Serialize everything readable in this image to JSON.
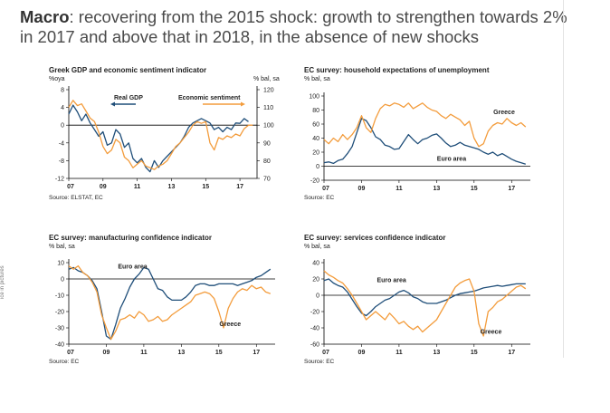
{
  "headline": {
    "bold": "Macro",
    "rest": ": recovering from the 2015 shock: growth to strengthen towards 2% in 2017 and above that in 2018, in the absence of new shocks"
  },
  "side_text": "ice in pictures",
  "colors": {
    "blue": "#1f4e79",
    "orange": "#f39c3c",
    "axis": "#000000"
  },
  "chart_data": [
    {
      "id": "gdp",
      "type": "line",
      "title": "Greek GDP and economic sentiment indicator",
      "left_unit": "%oya",
      "right_unit": "% bal, sa",
      "source": "Source: ELSTAT, EC",
      "x_ticks": [
        "07",
        "09",
        "11",
        "13",
        "15",
        "17"
      ],
      "ylim": [
        -12,
        8
      ],
      "yticks": [
        8,
        4,
        0,
        -4,
        -8,
        -12
      ],
      "y2lim": [
        70,
        120
      ],
      "y2ticks": [
        120,
        110,
        100,
        90,
        80,
        70
      ],
      "series": [
        {
          "name": "Real GDP",
          "color": "#1f4e79",
          "axis": "left",
          "x": [
            2007.0,
            2007.25,
            2007.5,
            2007.75,
            2008.0,
            2008.25,
            2008.5,
            2008.75,
            2009.0,
            2009.25,
            2009.5,
            2009.75,
            2010.0,
            2010.25,
            2010.5,
            2010.75,
            2011.0,
            2011.25,
            2011.5,
            2011.75,
            2012.0,
            2012.25,
            2012.5,
            2012.75,
            2013.0,
            2013.25,
            2013.5,
            2013.75,
            2014.0,
            2014.25,
            2014.5,
            2014.75,
            2015.0,
            2015.25,
            2015.5,
            2015.75,
            2016.0,
            2016.25,
            2016.5,
            2016.75,
            2017.0,
            2017.25,
            2017.5
          ],
          "values": [
            2.5,
            4.5,
            3.0,
            1.0,
            2.5,
            0.5,
            -1.0,
            -2.5,
            -1.5,
            -4.5,
            -4.0,
            -1.0,
            -2.0,
            -5.0,
            -4.0,
            -7.5,
            -8.5,
            -7.5,
            -9.5,
            -10.5,
            -8.0,
            -9.5,
            -8.0,
            -7.0,
            -6.0,
            -5.0,
            -4.0,
            -2.5,
            -0.5,
            0.5,
            1.0,
            1.5,
            1.0,
            0.5,
            -1.0,
            -0.5,
            -1.5,
            -0.5,
            -1.0,
            0.5,
            0.4,
            1.5,
            0.8
          ]
        },
        {
          "name": "Economic sentiment",
          "color": "#f39c3c",
          "axis": "right",
          "x": [
            2007.0,
            2007.25,
            2007.5,
            2007.75,
            2008.0,
            2008.25,
            2008.5,
            2008.75,
            2009.0,
            2009.25,
            2009.5,
            2009.75,
            2010.0,
            2010.25,
            2010.5,
            2010.75,
            2011.0,
            2011.25,
            2011.5,
            2011.75,
            2012.0,
            2012.25,
            2012.5,
            2012.75,
            2013.0,
            2013.25,
            2013.5,
            2013.75,
            2014.0,
            2014.25,
            2014.5,
            2014.75,
            2015.0,
            2015.25,
            2015.5,
            2015.75,
            2016.0,
            2016.25,
            2016.5,
            2016.75,
            2017.0,
            2017.25,
            2017.5,
            2017.75
          ],
          "values": [
            110,
            114,
            111,
            112,
            108,
            104,
            102,
            96,
            88,
            84,
            86,
            92,
            90,
            82,
            80,
            76,
            78,
            80,
            77,
            76,
            75,
            77,
            78,
            80,
            84,
            88,
            90,
            93,
            96,
            100,
            102,
            101,
            102,
            90,
            86,
            93,
            92,
            94,
            93,
            95,
            94,
            98,
            100,
            100
          ]
        }
      ]
    },
    {
      "id": "unemp",
      "type": "line",
      "title": "EC survey: household expectations of unemployment",
      "left_unit": "% bal, sa",
      "source": "Source: EC",
      "x_ticks": [
        "07",
        "09",
        "11",
        "13",
        "15",
        "17"
      ],
      "ylim": [
        -20,
        100
      ],
      "yticks": [
        100,
        80,
        60,
        40,
        20,
        0,
        -20
      ],
      "labels": [
        {
          "text": "Greece",
          "x": 2016.6,
          "y": 74
        },
        {
          "text": "Euro area",
          "x": 2013.8,
          "y": 8
        }
      ],
      "series": [
        {
          "name": "Euro area",
          "color": "#1f4e79",
          "x": [
            2007.0,
            2007.25,
            2007.5,
            2007.75,
            2008.0,
            2008.25,
            2008.5,
            2008.75,
            2009.0,
            2009.25,
            2009.5,
            2009.75,
            2010.0,
            2010.25,
            2010.5,
            2010.75,
            2011.0,
            2011.25,
            2011.5,
            2011.75,
            2012.0,
            2012.25,
            2012.5,
            2012.75,
            2013.0,
            2013.25,
            2013.5,
            2013.75,
            2014.0,
            2014.25,
            2014.5,
            2014.75,
            2015.0,
            2015.25,
            2015.5,
            2015.75,
            2016.0,
            2016.25,
            2016.5,
            2016.75,
            2017.0,
            2017.25,
            2017.5,
            2017.75
          ],
          "values": [
            5,
            6,
            4,
            8,
            10,
            18,
            28,
            48,
            68,
            65,
            55,
            42,
            38,
            30,
            28,
            24,
            25,
            35,
            45,
            38,
            32,
            38,
            40,
            44,
            46,
            40,
            33,
            28,
            30,
            34,
            30,
            28,
            26,
            24,
            20,
            17,
            20,
            15,
            18,
            14,
            10,
            7,
            5,
            3
          ]
        },
        {
          "name": "Greece",
          "color": "#f39c3c",
          "x": [
            2007.0,
            2007.25,
            2007.5,
            2007.75,
            2008.0,
            2008.25,
            2008.5,
            2008.75,
            2009.0,
            2009.25,
            2009.5,
            2009.75,
            2010.0,
            2010.25,
            2010.5,
            2010.75,
            2011.0,
            2011.25,
            2011.5,
            2011.75,
            2012.0,
            2012.25,
            2012.5,
            2012.75,
            2013.0,
            2013.25,
            2013.5,
            2013.75,
            2014.0,
            2014.25,
            2014.5,
            2014.75,
            2015.0,
            2015.25,
            2015.5,
            2015.75,
            2016.0,
            2016.25,
            2016.5,
            2016.75,
            2017.0,
            2017.25,
            2017.5,
            2017.75
          ],
          "values": [
            38,
            32,
            40,
            35,
            45,
            38,
            45,
            55,
            72,
            55,
            48,
            68,
            82,
            88,
            86,
            90,
            88,
            84,
            90,
            82,
            86,
            90,
            84,
            80,
            78,
            72,
            68,
            74,
            70,
            66,
            58,
            64,
            40,
            28,
            32,
            50,
            58,
            62,
            60,
            68,
            62,
            58,
            62,
            56
          ]
        }
      ]
    },
    {
      "id": "manuf",
      "type": "line",
      "title": "EC survey: manufacturing confidence indicator",
      "left_unit": "% bal, sa",
      "source": "Source: EC",
      "x_ticks": [
        "07",
        "09",
        "11",
        "13",
        "15",
        "17"
      ],
      "ylim": [
        -40,
        10
      ],
      "yticks": [
        10,
        0,
        -10,
        -20,
        -30,
        -40
      ],
      "labels": [
        {
          "text": "Euro area",
          "x": 2010.4,
          "y": 6.5
        },
        {
          "text": "Greece",
          "x": 2015.6,
          "y": -29
        }
      ],
      "series": [
        {
          "name": "Euro area",
          "color": "#1f4e79",
          "x": [
            2007.0,
            2007.25,
            2007.5,
            2007.75,
            2008.0,
            2008.25,
            2008.5,
            2008.75,
            2009.0,
            2009.25,
            2009.5,
            2009.75,
            2010.0,
            2010.25,
            2010.5,
            2010.75,
            2011.0,
            2011.25,
            2011.5,
            2011.75,
            2012.0,
            2012.25,
            2012.5,
            2012.75,
            2013.0,
            2013.25,
            2013.5,
            2013.75,
            2014.0,
            2014.25,
            2014.5,
            2014.75,
            2015.0,
            2015.25,
            2015.5,
            2015.75,
            2016.0,
            2016.25,
            2016.5,
            2016.75,
            2017.0,
            2017.25,
            2017.5,
            2017.75
          ],
          "values": [
            6,
            7,
            5,
            4,
            2,
            -1,
            -6,
            -20,
            -35,
            -37,
            -28,
            -18,
            -12,
            -5,
            0,
            3,
            7,
            6,
            0,
            -6,
            -7,
            -11,
            -13,
            -13,
            -13,
            -11,
            -8,
            -4,
            -3,
            -3,
            -4,
            -4,
            -3,
            -3,
            -3,
            -3,
            -4,
            -3,
            -2,
            -1,
            1,
            2,
            4,
            6
          ]
        },
        {
          "name": "Greece",
          "color": "#f39c3c",
          "x": [
            2007.0,
            2007.25,
            2007.5,
            2007.75,
            2008.0,
            2008.25,
            2008.5,
            2008.75,
            2009.0,
            2009.25,
            2009.5,
            2009.75,
            2010.0,
            2010.25,
            2010.5,
            2010.75,
            2011.0,
            2011.25,
            2011.5,
            2011.75,
            2012.0,
            2012.25,
            2012.5,
            2012.75,
            2013.0,
            2013.25,
            2013.5,
            2013.75,
            2014.0,
            2014.25,
            2014.5,
            2014.75,
            2015.0,
            2015.25,
            2015.5,
            2015.75,
            2016.0,
            2016.25,
            2016.5,
            2016.75,
            2017.0,
            2017.25,
            2017.5,
            2017.75
          ],
          "values": [
            8,
            6,
            8,
            4,
            2,
            -2,
            -8,
            -22,
            -30,
            -37,
            -32,
            -25,
            -24,
            -22,
            -24,
            -20,
            -22,
            -26,
            -25,
            -23,
            -26,
            -25,
            -22,
            -20,
            -18,
            -16,
            -14,
            -10,
            -9,
            -8,
            -9,
            -12,
            -20,
            -30,
            -18,
            -12,
            -8,
            -6,
            -7,
            -4,
            -6,
            -5,
            -8,
            -9
          ]
        }
      ]
    },
    {
      "id": "services",
      "type": "line",
      "title": "EC survey: services confidence indicator",
      "left_unit": "% bal, sa",
      "source": "Source: EC",
      "x_ticks": [
        "07",
        "09",
        "11",
        "13",
        "15",
        "17"
      ],
      "ylim": [
        -60,
        40
      ],
      "yticks": [
        40,
        20,
        0,
        -20,
        -40,
        -60
      ],
      "labels": [
        {
          "text": "Euro area",
          "x": 2010.6,
          "y": 16
        },
        {
          "text": "Greece",
          "x": 2015.9,
          "y": -47
        }
      ],
      "series": [
        {
          "name": "Euro area",
          "color": "#1f4e79",
          "x": [
            2007.0,
            2007.25,
            2007.5,
            2007.75,
            2008.0,
            2008.25,
            2008.5,
            2008.75,
            2009.0,
            2009.25,
            2009.5,
            2009.75,
            2010.0,
            2010.25,
            2010.5,
            2010.75,
            2011.0,
            2011.25,
            2011.5,
            2011.75,
            2012.0,
            2012.25,
            2012.5,
            2012.75,
            2013.0,
            2013.25,
            2013.5,
            2013.75,
            2014.0,
            2014.25,
            2014.5,
            2014.75,
            2015.0,
            2015.25,
            2015.5,
            2015.75,
            2016.0,
            2016.25,
            2016.5,
            2016.75,
            2017.0,
            2017.25,
            2017.5,
            2017.75
          ],
          "values": [
            18,
            20,
            15,
            12,
            10,
            4,
            -5,
            -14,
            -22,
            -25,
            -20,
            -14,
            -10,
            -6,
            -4,
            0,
            4,
            6,
            3,
            -2,
            -4,
            -8,
            -10,
            -10,
            -10,
            -8,
            -6,
            -3,
            0,
            2,
            3,
            4,
            5,
            7,
            9,
            10,
            11,
            12,
            11,
            12,
            13,
            14,
            14,
            14
          ]
        },
        {
          "name": "Greece",
          "color": "#f39c3c",
          "x": [
            2007.0,
            2007.25,
            2007.5,
            2007.75,
            2008.0,
            2008.25,
            2008.5,
            2008.75,
            2009.0,
            2009.25,
            2009.5,
            2009.75,
            2010.0,
            2010.25,
            2010.5,
            2010.75,
            2011.0,
            2011.25,
            2011.5,
            2011.75,
            2012.0,
            2012.25,
            2012.5,
            2012.75,
            2013.0,
            2013.25,
            2013.5,
            2013.75,
            2014.0,
            2014.25,
            2014.5,
            2014.75,
            2015.0,
            2015.25,
            2015.5,
            2015.75,
            2016.0,
            2016.25,
            2016.5,
            2016.75,
            2017.0,
            2017.25,
            2017.5,
            2017.75
          ],
          "values": [
            30,
            25,
            22,
            18,
            15,
            8,
            0,
            -10,
            -20,
            -30,
            -25,
            -20,
            -25,
            -30,
            -22,
            -28,
            -35,
            -32,
            -38,
            -42,
            -38,
            -45,
            -40,
            -35,
            -30,
            -20,
            -10,
            0,
            10,
            15,
            18,
            20,
            5,
            -35,
            -50,
            -20,
            -15,
            -8,
            -5,
            0,
            5,
            10,
            12,
            8
          ]
        }
      ]
    }
  ]
}
